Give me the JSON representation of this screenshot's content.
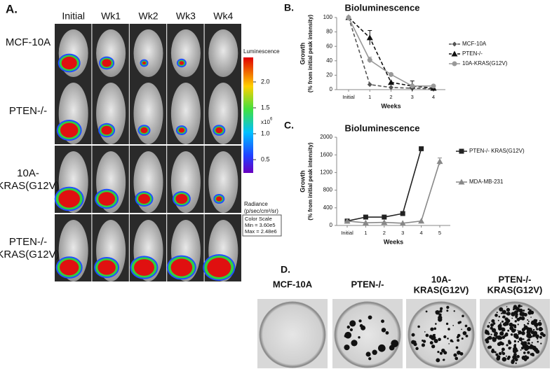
{
  "panel_a": {
    "label": "A.",
    "columns": [
      "Initial",
      "Wk1",
      "Wk2",
      "Wk3",
      "Wk4"
    ],
    "rows": [
      [
        "MCF-10A"
      ],
      [
        "PTEN-/-"
      ],
      [
        "10A-",
        "KRAS(G12V)"
      ],
      [
        "PTEN-/-",
        "KRAS(G12V)"
      ]
    ],
    "colorbar_title": "Luminescence",
    "colorbar_ticks": [
      {
        "value": 2,
        "label": "2.0"
      },
      1.5,
      {
        "value": 1,
        "label": "1.0"
      },
      0.5
    ],
    "colorbar_unit": "x10",
    "colorbar_exponent": "6",
    "radiance": [
      "Radiance",
      "(p/sec/cm²/sr)"
    ],
    "color_scale": [
      "Color Scale",
      "Min = 3.60e5",
      "Max = 2.48e6"
    ]
  },
  "chart_data": [
    {
      "type": "line",
      "panel": "B.",
      "title": "Bioluminescence",
      "ylabel": [
        "Growth",
        "(% from initial peak intensity)"
      ],
      "xlabel": "Weeks",
      "categories": [
        "Initial",
        "1",
        "2",
        "3",
        "4"
      ],
      "ylim": [
        0,
        100
      ],
      "yticks": [
        0,
        20,
        40,
        60,
        80,
        100
      ],
      "series": [
        {
          "name": "MCF-10A",
          "color": "#555555",
          "marker": "diamond",
          "dash": true,
          "values": [
            100,
            7,
            3,
            2,
            1
          ],
          "errors": [
            null,
            null,
            null,
            null,
            null
          ]
        },
        {
          "name": "PTEN-/-",
          "color": "#111111",
          "marker": "triangle",
          "dash": true,
          "values": [
            100,
            72,
            10,
            5,
            2
          ],
          "errors": [
            null,
            10,
            null,
            7,
            null
          ]
        },
        {
          "name": "10A-KRAS(G12V)",
          "color": "#999999",
          "marker": "circle",
          "dash": false,
          "values": [
            100,
            41,
            21,
            5,
            5
          ],
          "errors": [
            null,
            4,
            null,
            null,
            null
          ]
        }
      ]
    },
    {
      "type": "line",
      "panel": "C.",
      "title": "Bioluminescence",
      "ylabel": [
        "Growth",
        "(% from  initial peak intensity)"
      ],
      "xlabel": "Weeks",
      "categories": [
        "Initial",
        "1",
        "2",
        "3",
        "4",
        "5"
      ],
      "ylim": [
        0,
        2000
      ],
      "yticks": [
        0,
        400,
        800,
        1200,
        1600,
        2000
      ],
      "series": [
        {
          "name": "PTEN-/- KRAS(G12V)",
          "color": "#222222",
          "marker": "square",
          "dash": false,
          "values": [
            100,
            190,
            190,
            270,
            1740,
            null
          ],
          "errors": [
            null,
            null,
            null,
            null,
            null,
            null
          ]
        },
        {
          "name": "MDA-MB-231",
          "color": "#888888",
          "marker": "triangle",
          "dash": false,
          "values": [
            100,
            60,
            70,
            50,
            100,
            1450
          ],
          "errors": [
            null,
            null,
            null,
            null,
            null,
            80
          ]
        }
      ]
    }
  ],
  "panel_d": {
    "label": "D.",
    "plates": [
      [
        "MCF-10A"
      ],
      [
        "PTEN-/-"
      ],
      [
        "10A-",
        "KRAS(G12V)"
      ],
      [
        "PTEN-/-",
        "KRAS(G12V)"
      ]
    ]
  }
}
